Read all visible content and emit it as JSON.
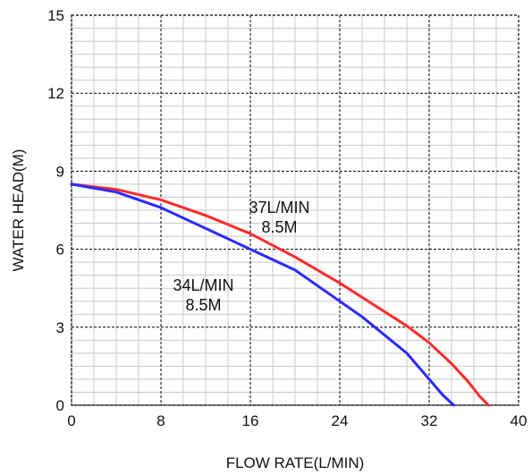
{
  "chart_data": {
    "type": "line",
    "xlabel": "FLOW  RATE(L/MIN)",
    "ylabel": "WATER  HEAD(M)",
    "xlim": [
      0,
      40
    ],
    "ylim": [
      0,
      15
    ],
    "xticks": [
      0,
      8,
      16,
      24,
      32,
      40
    ],
    "yticks": [
      0,
      3,
      6,
      9,
      12,
      15
    ],
    "xtick_labels": [
      "0",
      "8",
      "16",
      "24",
      "32",
      "40"
    ],
    "ytick_labels": [
      "0",
      "3",
      "6",
      "9",
      "12",
      "15"
    ],
    "grid": true,
    "minor_grid_step": 2,
    "series": [
      {
        "color": "#ff2a2a",
        "x": [
          0,
          4,
          8,
          12,
          16,
          20,
          24,
          28,
          30,
          32,
          34,
          35.5,
          36.5,
          37.3
        ],
        "y": [
          8.5,
          8.3,
          7.9,
          7.3,
          6.6,
          5.7,
          4.7,
          3.6,
          3.05,
          2.4,
          1.6,
          0.9,
          0.35,
          0
        ]
      },
      {
        "color": "#2a2aff",
        "x": [
          0,
          4,
          8,
          12,
          16,
          20,
          22,
          24,
          26,
          28,
          30,
          32,
          33.2,
          34.2
        ],
        "y": [
          8.5,
          8.2,
          7.6,
          6.8,
          6.0,
          5.2,
          4.6,
          4.0,
          3.4,
          2.7,
          2.0,
          1.0,
          0.4,
          0
        ]
      }
    ],
    "annotations": [
      {
        "lines": [
          "37L/MIN",
          "8.5M"
        ],
        "x": 18.6,
        "y": 7.4
      },
      {
        "lines": [
          "34L/MIN",
          "8.5M"
        ],
        "x": 11.8,
        "y": 4.4
      }
    ]
  }
}
